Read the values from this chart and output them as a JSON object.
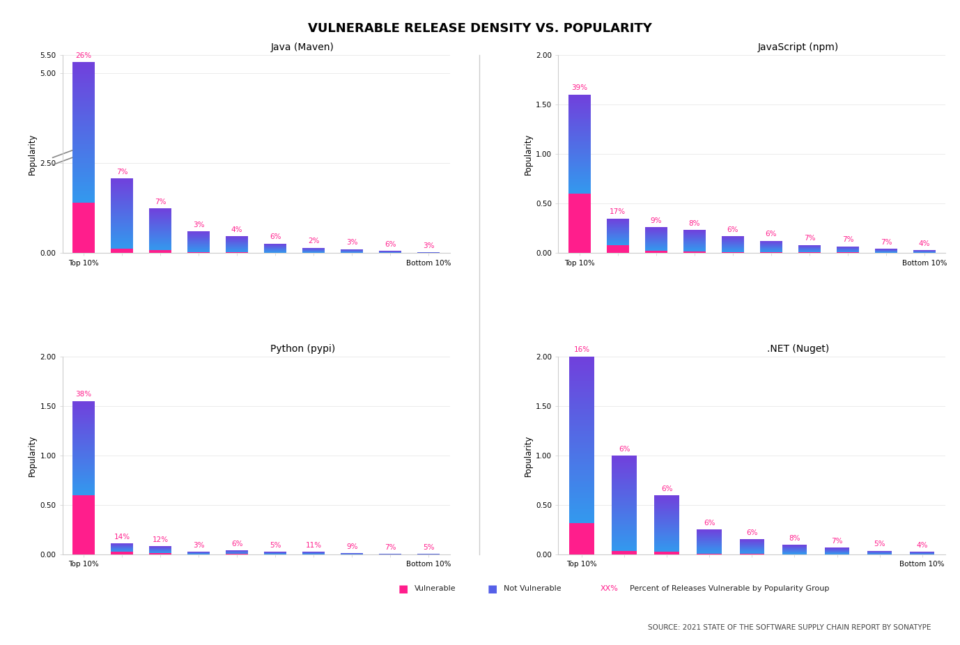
{
  "title": "VULNERABLE RELEASE DENSITY VS. POPULARITY",
  "source": "SOURCE: 2021 STATE OF THE SOFTWARE SUPPLY CHAIN REPORT BY SONATYPE",
  "ylabel": "Popularity",
  "panels": [
    {
      "title": "Java (Maven)",
      "x_labels": [
        "Top 10%",
        "",
        "",
        "",
        "",
        "",
        "",
        "",
        "",
        "Bottom 10%"
      ],
      "vulnerable": [
        1.4,
        0.13,
        0.09,
        0.02,
        0.02,
        0.01,
        0.01,
        0.005,
        0.005,
        0.003
      ],
      "not_vulnerable": [
        3.9,
        1.95,
        1.15,
        0.59,
        0.45,
        0.26,
        0.14,
        0.11,
        0.055,
        0.027
      ],
      "pct_labels": [
        "26%",
        "7%",
        "7%",
        "3%",
        "4%",
        "6%",
        "2%",
        "3%",
        "6%",
        "3%"
      ],
      "ylim": [
        0,
        5.5
      ],
      "yticks": [
        0.0,
        2.5,
        5.0,
        5.5
      ],
      "yticklabels": [
        "0.00",
        "2.50",
        "5.00",
        "5.50"
      ],
      "has_break": true
    },
    {
      "title": "JavaScript (npm)",
      "x_labels": [
        "Top 10%",
        "",
        "",
        "",
        "",
        "",
        "",
        "",
        "",
        "Bottom 10%"
      ],
      "vulnerable": [
        0.6,
        0.08,
        0.025,
        0.02,
        0.012,
        0.01,
        0.008,
        0.007,
        0.005,
        0.003
      ],
      "not_vulnerable": [
        1.0,
        0.27,
        0.235,
        0.215,
        0.16,
        0.115,
        0.075,
        0.063,
        0.038,
        0.027
      ],
      "pct_labels": [
        "39%",
        "17%",
        "9%",
        "8%",
        "6%",
        "6%",
        "7%",
        "7%",
        "7%",
        "4%"
      ],
      "ylim": [
        0,
        2.0
      ],
      "yticks": [
        0.0,
        0.5,
        1.0,
        1.5,
        2.0
      ],
      "yticklabels": [
        "0.00",
        "0.50",
        "1.00",
        "1.50",
        "2.00"
      ],
      "has_break": false
    },
    {
      "title": "Python (pypi)",
      "x_labels": [
        "Top 10%",
        "",
        "",
        "",
        "",
        "",
        "",
        "",
        "",
        "Bottom 10%"
      ],
      "vulnerable": [
        0.6,
        0.03,
        0.02,
        0.005,
        0.008,
        0.005,
        0.003,
        0.002,
        0.001,
        0.001
      ],
      "not_vulnerable": [
        0.95,
        0.085,
        0.065,
        0.025,
        0.038,
        0.023,
        0.027,
        0.016,
        0.009,
        0.009
      ],
      "pct_labels": [
        "38%",
        "14%",
        "12%",
        "3%",
        "6%",
        "5%",
        "11%",
        "9%",
        "7%",
        "5%"
      ],
      "ylim": [
        0,
        2.0
      ],
      "yticks": [
        0.0,
        0.5,
        1.0,
        1.5,
        2.0
      ],
      "yticklabels": [
        "0.00",
        "0.50",
        "1.00",
        "1.50",
        "2.00"
      ],
      "has_break": false
    },
    {
      "title": ".NET (Nuget)",
      "x_labels": [
        "Top 10%",
        "",
        "",
        "",
        "",
        "",
        "",
        "",
        "Bottom 10%"
      ],
      "vulnerable": [
        0.32,
        0.04,
        0.03,
        0.01,
        0.01,
        0.006,
        0.004,
        0.002,
        0.001
      ],
      "not_vulnerable": [
        1.68,
        0.96,
        0.57,
        0.245,
        0.145,
        0.094,
        0.066,
        0.038,
        0.029
      ],
      "pct_labels": [
        "16%",
        "6%",
        "6%",
        "6%",
        "6%",
        "8%",
        "7%",
        "5%",
        "4%"
      ],
      "ylim": [
        0,
        2.0
      ],
      "yticks": [
        0.0,
        0.5,
        1.0,
        1.5,
        2.0
      ],
      "yticklabels": [
        "0.00",
        "0.50",
        "1.00",
        "1.50",
        "2.00"
      ],
      "has_break": false
    }
  ],
  "color_vulnerable": "#FF1E8C",
  "color_not_vuln_top": "#7040DC",
  "color_not_vuln_bottom": "#3399EE",
  "color_pct_label": "#FF1E8C",
  "legend_vulnerable_color": "#FF1E8C",
  "legend_not_vulnerable_color": "#5560E8",
  "legend_pct_color": "#FF1E8C",
  "legend_pct_text": "XX% Percent of Releases Vulnerable by Popularity Group"
}
